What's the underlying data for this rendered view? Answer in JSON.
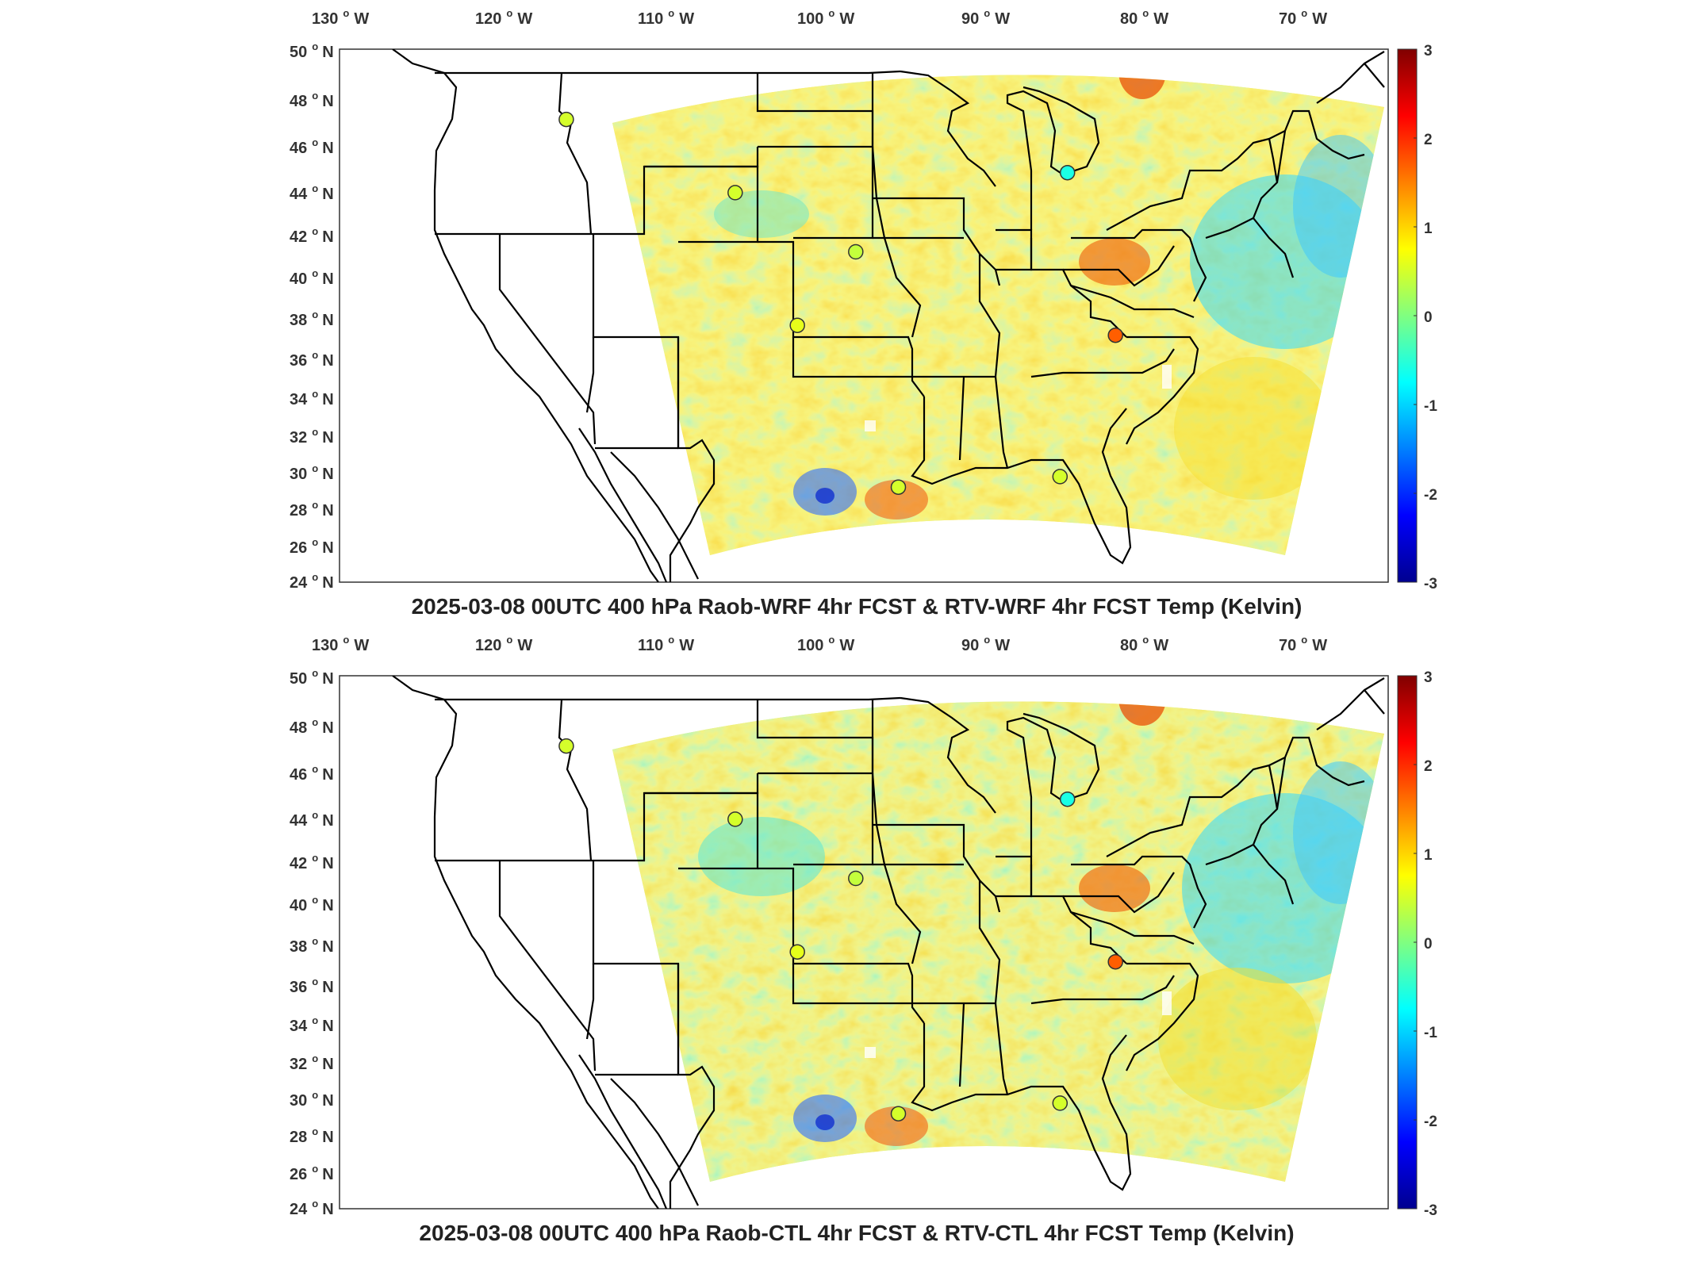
{
  "colors": {
    "colormap": [
      "#00008f",
      "#0000ff",
      "#0080ff",
      "#00ffff",
      "#80ff80",
      "#ffff00",
      "#ff8000",
      "#ff0000",
      "#800000"
    ],
    "field_base": "#f2e84a",
    "land_fill": "#ffffff",
    "outline": "#000000",
    "frame": "#333333"
  },
  "panels": [
    {
      "title": "2025-03-08 00UTC 400 hPa Raob-WRF 4hr FCST & RTV-WRF 4hr FCST Temp (Kelvin)",
      "lon_ticks": [
        "130",
        "120",
        "110",
        "100",
        "90",
        "80",
        "70"
      ],
      "lon_hemi": "W",
      "lat_ticks": [
        "50",
        "48",
        "46",
        "44",
        "42",
        "40",
        "38",
        "36",
        "34",
        "32",
        "30",
        "28",
        "26",
        "24"
      ],
      "lat_hemi": "N",
      "colorbar": {
        "ticks": [
          "3",
          "2",
          "1",
          "0",
          "-1",
          "-2",
          "-3"
        ],
        "range": [
          -3,
          3
        ]
      },
      "stations": [
        {
          "lon": -111.9,
          "lat": 47.5,
          "value": 0.5
        },
        {
          "lon": -103.2,
          "lat": 44.1,
          "value": 0.5
        },
        {
          "lon": -96.4,
          "lat": 41.3,
          "value": 0.4
        },
        {
          "lon": -100.0,
          "lat": 37.8,
          "value": 0.6
        },
        {
          "lon": -93.2,
          "lat": 30.1,
          "value": 0.5
        },
        {
          "lon": -81.7,
          "lat": 30.5,
          "value": 0.5
        },
        {
          "lon": -84.7,
          "lat": 45.0,
          "value": -0.6
        },
        {
          "lon": -80.0,
          "lat": 37.2,
          "value": 1.7
        }
      ]
    },
    {
      "title": "2025-03-08 00UTC 400 hPa Raob-CTL 4hr FCST & RTV-CTL 4hr FCST Temp (Kelvin)",
      "lon_ticks": [
        "130",
        "120",
        "110",
        "100",
        "90",
        "80",
        "70"
      ],
      "lon_hemi": "W",
      "lat_ticks": [
        "50",
        "48",
        "46",
        "44",
        "42",
        "40",
        "38",
        "36",
        "34",
        "32",
        "30",
        "28",
        "26",
        "24"
      ],
      "lat_hemi": "N",
      "colorbar": {
        "ticks": [
          "3",
          "2",
          "1",
          "0",
          "-1",
          "-2",
          "-3"
        ],
        "range": [
          -3,
          3
        ]
      },
      "stations": [
        {
          "lon": -111.9,
          "lat": 47.5,
          "value": 0.5
        },
        {
          "lon": -103.2,
          "lat": 44.1,
          "value": 0.5
        },
        {
          "lon": -96.4,
          "lat": 41.3,
          "value": 0.4
        },
        {
          "lon": -100.0,
          "lat": 37.8,
          "value": 0.6
        },
        {
          "lon": -93.2,
          "lat": 30.1,
          "value": 0.5
        },
        {
          "lon": -81.7,
          "lat": 30.5,
          "value": 0.5
        },
        {
          "lon": -84.7,
          "lat": 45.0,
          "value": -0.6
        },
        {
          "lon": -80.0,
          "lat": 37.2,
          "value": 1.7
        }
      ]
    }
  ]
}
